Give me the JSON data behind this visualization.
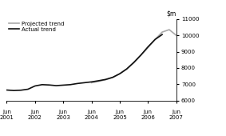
{
  "actual_x": [
    2001.0,
    2001.25,
    2001.5,
    2001.75,
    2002.0,
    2002.25,
    2002.5,
    2002.75,
    2003.0,
    2003.25,
    2003.5,
    2003.75,
    2004.0,
    2004.25,
    2004.5,
    2004.75,
    2005.0,
    2005.25,
    2005.5,
    2005.75,
    2006.0,
    2006.25,
    2006.5
  ],
  "actual_y": [
    6650,
    6620,
    6640,
    6700,
    6900,
    6980,
    6960,
    6920,
    6950,
    6980,
    7050,
    7100,
    7150,
    7220,
    7300,
    7430,
    7650,
    7950,
    8350,
    8800,
    9300,
    9750,
    10050
  ],
  "projected_x": [
    2004.0,
    2004.25,
    2004.5,
    2004.75,
    2005.0,
    2005.25,
    2005.5,
    2005.75,
    2006.0,
    2006.25,
    2006.5,
    2006.75,
    2007.0
  ],
  "projected_y": [
    7100,
    7180,
    7280,
    7420,
    7650,
    7930,
    8320,
    8780,
    9250,
    9750,
    10200,
    10350,
    10000
  ],
  "ylim": [
    6000,
    11000
  ],
  "yticks": [
    6000,
    7000,
    8000,
    9000,
    10000,
    11000
  ],
  "xlim": [
    2001.0,
    2007.0
  ],
  "xticks": [
    2001.0,
    2002.0,
    2003.0,
    2004.0,
    2005.0,
    2006.0,
    2007.0
  ],
  "xtick_labels_line1": [
    "Jun",
    "Jun",
    "Jun",
    "Jun",
    "Jun",
    "Jun",
    "Jun"
  ],
  "xtick_labels_line2": [
    "2001",
    "2002",
    "2003",
    "2004",
    "2005",
    "2006",
    "2007"
  ],
  "actual_color": "#111111",
  "projected_color": "#aaaaaa",
  "legend_actual": "Actual trend",
  "legend_projected": "Projected trend",
  "background_color": "#ffffff",
  "linewidth": 1.2
}
